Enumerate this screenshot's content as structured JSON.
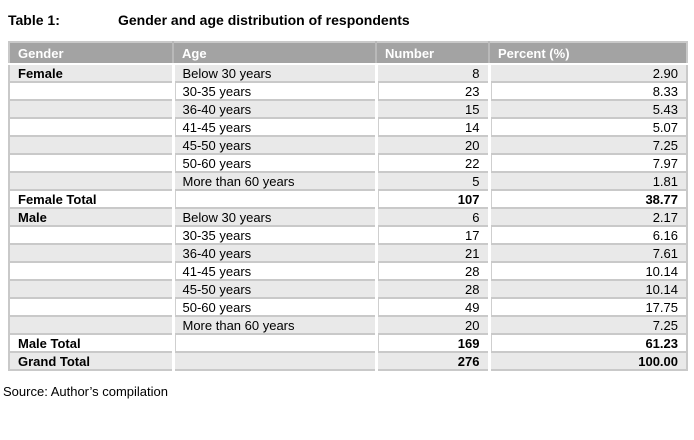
{
  "title": {
    "label": "Table 1:",
    "caption": "Gender and age distribution of respondents"
  },
  "table": {
    "columns": [
      "Gender",
      "Age",
      "Number",
      "Percent (%)"
    ],
    "rows": [
      {
        "gender": "Female",
        "age": "Below 30 years",
        "number": "8",
        "percent": "2.90",
        "is_total": false
      },
      {
        "gender": "",
        "age": "30-35 years",
        "number": "23",
        "percent": "8.33",
        "is_total": false
      },
      {
        "gender": "",
        "age": "36-40 years",
        "number": "15",
        "percent": "5.43",
        "is_total": false
      },
      {
        "gender": "",
        "age": "41-45 years",
        "number": "14",
        "percent": "5.07",
        "is_total": false
      },
      {
        "gender": "",
        "age": "45-50 years",
        "number": "20",
        "percent": "7.25",
        "is_total": false
      },
      {
        "gender": "",
        "age": "50-60 years",
        "number": "22",
        "percent": "7.97",
        "is_total": false
      },
      {
        "gender": "",
        "age": "More than 60 years",
        "number": "5",
        "percent": "1.81",
        "is_total": false
      },
      {
        "gender": "Female Total",
        "age": "",
        "number": "107",
        "percent": "38.77",
        "is_total": true
      },
      {
        "gender": "Male",
        "age": "Below 30 years",
        "number": "6",
        "percent": "2.17",
        "is_total": false
      },
      {
        "gender": "",
        "age": "30-35 years",
        "number": "17",
        "percent": "6.16",
        "is_total": false
      },
      {
        "gender": "",
        "age": "36-40 years",
        "number": "21",
        "percent": "7.61",
        "is_total": false
      },
      {
        "gender": "",
        "age": "41-45 years",
        "number": "28",
        "percent": "10.14",
        "is_total": false
      },
      {
        "gender": "",
        "age": "45-50 years",
        "number": "28",
        "percent": "10.14",
        "is_total": false
      },
      {
        "gender": "",
        "age": "50-60 years",
        "number": "49",
        "percent": "17.75",
        "is_total": false
      },
      {
        "gender": "",
        "age": "More than 60 years",
        "number": "20",
        "percent": "7.25",
        "is_total": false
      },
      {
        "gender": "Male Total",
        "age": "",
        "number": "169",
        "percent": "61.23",
        "is_total": true
      },
      {
        "gender": "Grand Total",
        "age": "",
        "number": "276",
        "percent": "100.00",
        "is_total": true
      }
    ]
  },
  "source": "Source: Author’s compilation",
  "colors": {
    "header_bg": "#a3a3a3",
    "header_text": "#ffffff",
    "shade_row_bg": "#e9e9e9",
    "grid_line": "#c9c9c9"
  }
}
